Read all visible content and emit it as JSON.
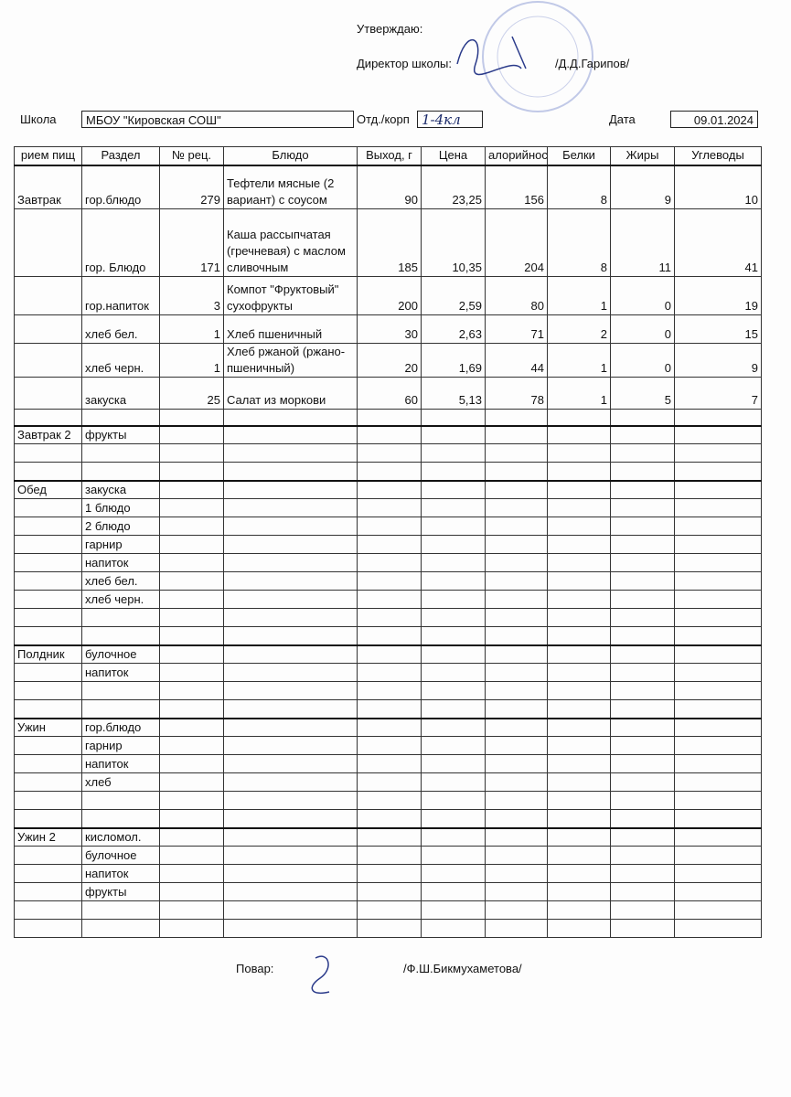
{
  "header": {
    "approve": "Утверждаю:",
    "director_label": "Директор школы:",
    "director_name": "/Д.Д.Гарипов/"
  },
  "info": {
    "school_label": "Школа",
    "school": "МБОУ \"Кировская СОШ\"",
    "dept_label": "Отд./корп",
    "dept": "1-4кл",
    "date_label": "Дата",
    "date": "09.01.2024"
  },
  "table": {
    "columns": [
      "рием пищ",
      "Раздел",
      "№ рец.",
      "Блюдо",
      "Выход, г",
      "Цена",
      "алорийнос",
      "Белки",
      "Жиры",
      "Углеводы"
    ],
    "sections": [
      {
        "meal": "Завтрак",
        "items": [
          {
            "section": "гор.блюдо",
            "recipe": "279",
            "dish": "Тефтели мясные (2 вариант) с соусом",
            "yield": "90",
            "price": "23,25",
            "kcal": "156",
            "protein": "8",
            "fat": "9",
            "carbs": "10"
          },
          {
            "section": "гор. Блюдо",
            "recipe": "171",
            "dish": "Каша рассыпчатая (гречневая) с маслом сливочным",
            "yield": "185",
            "price": "10,35",
            "kcal": "204",
            "protein": "8",
            "fat": "11",
            "carbs": "41"
          },
          {
            "section": "гор.напиток",
            "recipe": "3",
            "dish": "Компот \"Фруктовый\" сухофрукты",
            "yield": "200",
            "price": "2,59",
            "kcal": "80",
            "protein": "1",
            "fat": "0",
            "carbs": "19"
          },
          {
            "section": "хлеб бел.",
            "recipe": "1",
            "dish": "Хлеб пшеничный",
            "yield": "30",
            "price": "2,63",
            "kcal": "71",
            "protein": "2",
            "fat": "0",
            "carbs": "15"
          },
          {
            "section": "хлеб черн.",
            "recipe": "1",
            "dish": "Хлеб ржаной (ржано-пшеничный)",
            "yield": "20",
            "price": "1,69",
            "kcal": "44",
            "protein": "1",
            "fat": "0",
            "carbs": "9"
          },
          {
            "section": "закуска",
            "recipe": "25",
            "dish": "Салат из моркови",
            "yield": "60",
            "price": "5,13",
            "kcal": "78",
            "protein": "1",
            "fat": "5",
            "carbs": "7"
          }
        ]
      },
      {
        "meal": "Завтрак 2",
        "items": [
          "фрукты"
        ]
      },
      {
        "meal": "Обед",
        "items": [
          "закуска",
          "1 блюдо",
          "2 блюдо",
          "гарнир",
          "напиток",
          "хлеб бел.",
          "хлеб черн."
        ]
      },
      {
        "meal": "Полдник",
        "items": [
          "булочное",
          "напиток"
        ]
      },
      {
        "meal": "Ужин",
        "items": [
          "гор.блюдо",
          "гарнир",
          "напиток",
          "хлеб"
        ]
      },
      {
        "meal": "Ужин 2",
        "items": [
          "кисломол.",
          "булочное",
          "напиток",
          "фрукты"
        ]
      }
    ]
  },
  "footer": {
    "cook_label": "Повар:",
    "cook_name": "/Ф.Ш.Бикмухаметова/"
  }
}
